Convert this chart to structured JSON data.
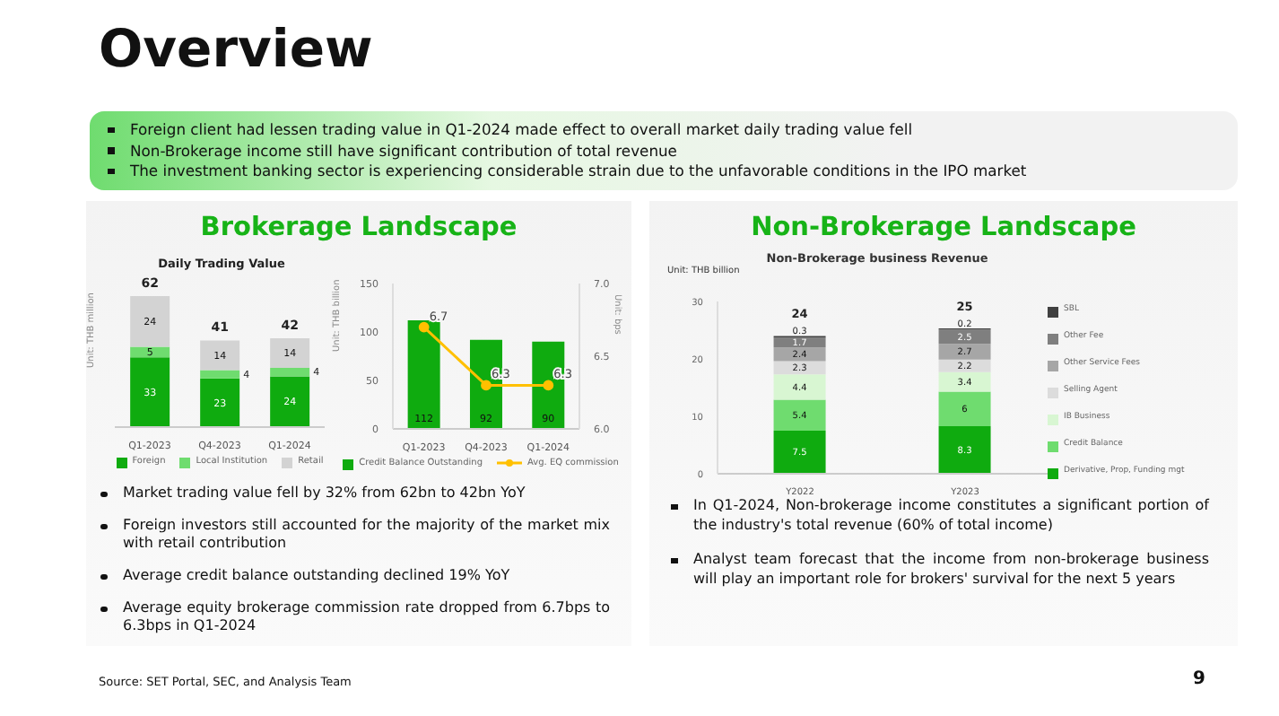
{
  "chart_data": [
    {
      "type": "bar",
      "title": "Daily Trading Value",
      "ylabel": "Unit: THB million",
      "categories": [
        "Q1-2023",
        "Q4-2023",
        "Q1-2024"
      ],
      "stacked": true,
      "series": [
        {
          "name": "Foreign",
          "color": "#0fab0f",
          "values": [
            33,
            23,
            24
          ]
        },
        {
          "name": "Local Institution",
          "color": "#6fdc6f",
          "values": [
            5,
            4,
            4
          ]
        },
        {
          "name": "Retail",
          "color": "#d3d3d3",
          "values": [
            24,
            14,
            14
          ]
        }
      ],
      "totals": [
        "62",
        "41",
        "42"
      ],
      "data_labels": true,
      "legend": "bottom",
      "tick_labels": "x",
      "grid": false,
      "annotations": [
        "Overview",
        "Foreign client had lessen trading value in Q1-2024 made effect to overall market daily trading value fell",
        "Non-Brokerage income still have significant contribution of total revenue",
        "The investment banking sector is experiencing considerable strain due to the unfavorable conditions in the IPO market",
        "Brokerage Landscape",
        "Market trading value fell by 32% from 62bn to 42bn YoY",
        "Foreign investors still accounted for the majority of the market mix with retail contribution",
        "Average credit balance outstanding declined 19% YoY",
        "Average equity brokerage commission rate dropped from 6.7bps to 6.3bps in Q1-2024",
        "Source: SET Portal, SEC, and Analysis Team",
        "9"
      ]
    },
    {
      "type": "bar",
      "ylabel": "Unit: THB billion",
      "y2label": "Unit: bps",
      "categories": [
        "Q1-2023",
        "Q4-2023",
        "Q1-2024"
      ],
      "series": [
        {
          "name": "Credit Balance Outstanding",
          "color": "#0fab0f",
          "values": [
            112,
            92,
            90
          ]
        },
        {
          "name": "Avg. EQ commission",
          "type": "line",
          "axis": "y2",
          "color": "#ffc000",
          "values": [
            6.7,
            6.3,
            6.3
          ]
        }
      ],
      "ylim": [
        0,
        150
      ],
      "yticks": [
        0,
        50,
        100,
        150
      ],
      "y2lim": [
        6,
        7
      ],
      "y2ticks": [
        {
          "value": 6,
          "label": "6.0"
        },
        {
          "value": 6.5,
          "label": "6.5"
        },
        {
          "value": 7,
          "label": "7.0"
        }
      ],
      "marker": "circle",
      "data_labels": true,
      "legend": "bottom",
      "grid": false
    },
    {
      "type": "bar",
      "title": "Non-Brokerage business Revenue",
      "ylabel": "Unit: THB billion",
      "categories": [
        "Y2022",
        "Y2023"
      ],
      "stacked": true,
      "series": [
        {
          "name": "Derivative, Prop, Funding mgt",
          "color": "#0fab0f",
          "values": [
            7.5,
            8.3
          ]
        },
        {
          "name": "Credit Balance",
          "color": "#6fdc6f",
          "values": [
            5.4,
            6.0
          ]
        },
        {
          "name": "IB Business",
          "color": "#d8f6d2",
          "values": [
            4.4,
            3.4
          ]
        },
        {
          "name": "Selling Agent",
          "color": "#dcdcdc",
          "values": [
            2.3,
            2.2
          ]
        },
        {
          "name": "Other Service Fees",
          "color": "#a6a6a6",
          "values": [
            2.4,
            2.7
          ]
        },
        {
          "name": "Other Fee",
          "color": "#7f7f7f",
          "values": [
            1.7,
            2.5
          ]
        },
        {
          "name": "SBL",
          "color": "#404040",
          "values": [
            0.3,
            0.2
          ]
        }
      ],
      "ylim": [
        0,
        30
      ],
      "yticks": [
        0,
        10,
        20,
        30
      ],
      "totals": [
        "24",
        "25"
      ],
      "data_labels": true,
      "legend": "right",
      "grid": false,
      "annotations": [
        "Non-Brokerage Landscape",
        "In Q1-2024, Non-brokerage income constitutes a significant portion of the industry's total revenue (60% of total income)",
        "Analyst team forecast that the income from non-brokerage business will play an important role for brokers' survival for the next 5 years"
      ]
    }
  ]
}
